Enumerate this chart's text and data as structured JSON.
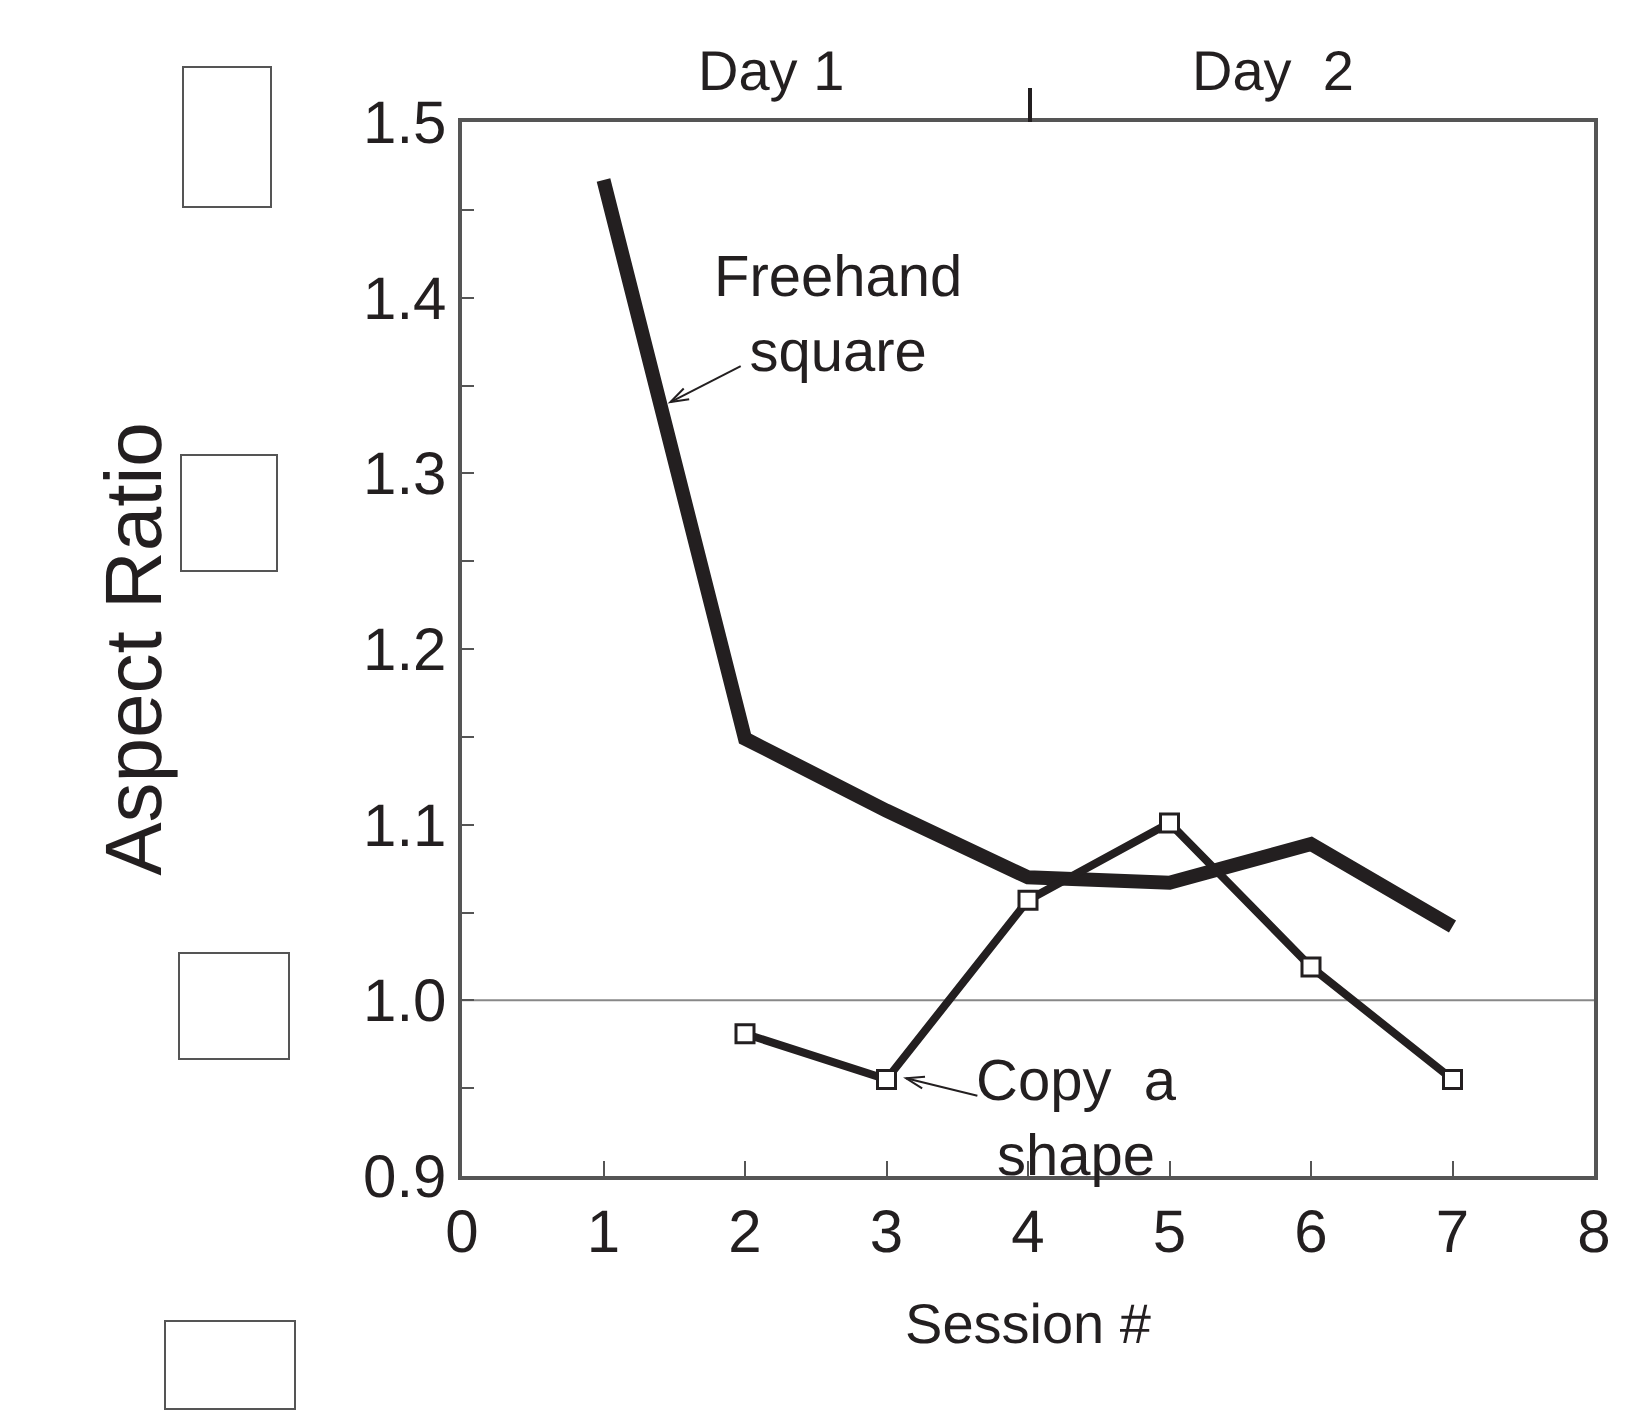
{
  "chart_data": {
    "type": "line",
    "xlabel": "Session #",
    "ylabel": "Aspect Ratio",
    "xlim": [
      0,
      8
    ],
    "xticks": [
      0,
      1,
      2,
      3,
      4,
      5,
      6,
      7,
      8
    ],
    "ylim": [
      0.9,
      1.5
    ],
    "yticks": [
      0.9,
      {
        "value": 0.95,
        "label": null
      },
      "1.0",
      {
        "value": 1.05,
        "label": null
      },
      1.1,
      {
        "value": 1.15,
        "label": null
      },
      1.2,
      {
        "value": 1.25,
        "label": null
      },
      1.3,
      {
        "value": 1.35,
        "label": null
      },
      1.4,
      {
        "value": 1.45,
        "label": null
      },
      1.5
    ],
    "series": [
      {
        "color": "#231f20",
        "marker": "none",
        "x": [
          1,
          2,
          3,
          4,
          5,
          6,
          7
        ],
        "values": [
          1.467,
          1.149,
          1.108,
          1.07,
          1.067,
          1.089,
          1.042
        ]
      },
      {
        "color": "#231f20",
        "marker": "square",
        "x": [
          2,
          3,
          4,
          5,
          6,
          7
        ],
        "values": [
          0.981,
          0.955,
          1.057,
          1.101,
          1.019,
          0.955
        ]
      }
    ],
    "ref_lines": [
      {
        "axis": "y",
        "value": 1.0,
        "color": "#888888"
      }
    ],
    "annotations": [
      {
        "text": "Freehand\nsquare",
        "x": 1.41,
        "y": 1.338
      },
      {
        "text": "Copy  a\nshape",
        "x": 3.07,
        "y": 0.957
      },
      "Day 1",
      "Day  2"
    ],
    "grid": false
  }
}
